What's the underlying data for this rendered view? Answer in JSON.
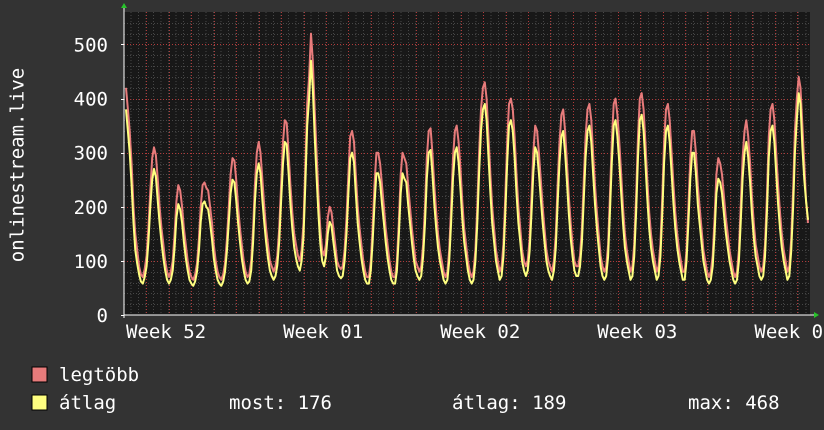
{
  "chart_data": {
    "type": "line",
    "ylabel": "onlinestream.live",
    "ylim": [
      0,
      560
    ],
    "yticks": [
      0,
      100,
      200,
      300,
      400,
      500
    ],
    "xlim": [
      0,
      1
    ],
    "xticks": [
      {
        "label": "Week 52",
        "x": 0.0
      },
      {
        "label": "Week 01",
        "x": 0.229
      },
      {
        "label": "Week 02",
        "x": 0.458
      },
      {
        "label": "Week 03",
        "x": 0.687
      },
      {
        "label": "Week 0",
        "x": 0.916
      }
    ],
    "grid": true,
    "colors": {
      "background": "#333333",
      "plot_background": "#181818",
      "grid_minor": "#474747",
      "grid_major": "#b03a3a",
      "axis_arrow": "#27c22a",
      "series_max": "#e77b7b",
      "series_avg": "#ffff80"
    },
    "series": [
      {
        "name": "legtöbb",
        "color": "#e77b7b",
        "values": [
          420,
          380,
          340,
          280,
          200,
          150,
          120,
          90,
          75,
          70,
          85,
          110,
          160,
          230,
          290,
          310,
          295,
          250,
          200,
          160,
          130,
          100,
          80,
          70,
          80,
          100,
          150,
          210,
          240,
          230,
          200,
          160,
          130,
          100,
          80,
          70,
          65,
          75,
          95,
          140,
          200,
          240,
          245,
          235,
          230,
          200,
          170,
          130,
          100,
          80,
          70,
          65,
          75,
          95,
          140,
          200,
          260,
          290,
          285,
          250,
          200,
          160,
          130,
          100,
          80,
          70,
          75,
          100,
          160,
          240,
          300,
          320,
          300,
          250,
          200,
          160,
          130,
          100,
          90,
          80,
          90,
          110,
          160,
          240,
          320,
          360,
          355,
          300,
          240,
          190,
          150,
          130,
          110,
          100,
          120,
          170,
          280,
          390,
          440,
          520,
          470,
          380,
          300,
          220,
          160,
          120,
          110,
          130,
          180,
          200,
          190,
          160,
          130,
          100,
          90,
          85,
          90,
          120,
          180,
          260,
          330,
          340,
          320,
          260,
          200,
          160,
          130,
          100,
          80,
          70,
          70,
          100,
          160,
          240,
          300,
          300,
          280,
          240,
          200,
          160,
          130,
          100,
          80,
          70,
          70,
          100,
          170,
          260,
          300,
          290,
          280,
          240,
          200,
          160,
          130,
          100,
          90,
          80,
          90,
          130,
          200,
          290,
          340,
          345,
          300,
          240,
          190,
          150,
          120,
          100,
          80,
          70,
          80,
          120,
          200,
          290,
          340,
          350,
          320,
          270,
          210,
          160,
          130,
          100,
          80,
          70,
          80,
          120,
          200,
          300,
          380,
          420,
          430,
          400,
          330,
          260,
          200,
          160,
          120,
          100,
          80,
          90,
          130,
          220,
          320,
          390,
          400,
          380,
          330,
          260,
          200,
          160,
          120,
          100,
          90,
          100,
          140,
          220,
          300,
          350,
          340,
          300,
          250,
          200,
          160,
          120,
          100,
          90,
          80,
          100,
          150,
          240,
          320,
          370,
          380,
          340,
          280,
          220,
          170,
          130,
          100,
          90,
          90,
          110,
          160,
          250,
          330,
          380,
          390,
          360,
          300,
          240,
          190,
          150,
          110,
          90,
          80,
          90,
          130,
          220,
          320,
          390,
          400,
          370,
          320,
          260,
          200,
          150,
          120,
          100,
          80,
          90,
          130,
          220,
          330,
          400,
          410,
          380,
          320,
          250,
          190,
          150,
          120,
          100,
          80,
          90,
          130,
          220,
          320,
          380,
          390,
          360,
          300,
          240,
          190,
          150,
          120,
          100,
          80,
          80,
          120,
          200,
          290,
          340,
          340,
          300,
          240,
          200,
          160,
          120,
          100,
          80,
          70,
          80,
          110,
          180,
          260,
          290,
          280,
          260,
          220,
          180,
          150,
          120,
          100,
          80,
          70,
          80,
          120,
          200,
          290,
          340,
          360,
          330,
          280,
          220,
          170,
          130,
          110,
          90,
          80,
          90,
          130,
          220,
          330,
          380,
          390,
          360,
          300,
          240,
          190,
          150,
          120,
          100,
          80,
          90,
          140,
          230,
          340,
          400,
          440,
          420,
          350,
          280,
          210,
          170
        ]
      },
      {
        "name": "átlag",
        "color": "#ffff80",
        "values": [
          380,
          340,
          300,
          240,
          170,
          120,
          95,
          75,
          62,
          58,
          70,
          90,
          135,
          200,
          250,
          270,
          255,
          210,
          170,
          135,
          105,
          82,
          65,
          58,
          65,
          82,
          125,
          180,
          205,
          195,
          170,
          135,
          105,
          82,
          65,
          58,
          54,
          62,
          80,
          118,
          172,
          205,
          210,
          200,
          195,
          170,
          140,
          105,
          82,
          65,
          58,
          54,
          62,
          80,
          118,
          172,
          225,
          250,
          245,
          212,
          170,
          135,
          105,
          82,
          65,
          58,
          62,
          82,
          135,
          210,
          262,
          280,
          262,
          212,
          170,
          135,
          105,
          82,
          72,
          65,
          72,
          92,
          135,
          210,
          280,
          320,
          315,
          262,
          205,
          160,
          125,
          105,
          90,
          82,
          100,
          145,
          245,
          350,
          400,
          470,
          420,
          330,
          255,
          185,
          132,
          100,
          90,
          108,
          150,
          172,
          165,
          135,
          108,
          82,
          72,
          68,
          72,
          100,
          150,
          225,
          290,
          300,
          282,
          225,
          170,
          135,
          105,
          82,
          65,
          58,
          58,
          82,
          135,
          205,
          262,
          262,
          245,
          205,
          170,
          135,
          105,
          82,
          65,
          58,
          58,
          82,
          145,
          225,
          262,
          252,
          245,
          205,
          170,
          135,
          105,
          82,
          72,
          65,
          72,
          108,
          170,
          252,
          300,
          305,
          262,
          205,
          160,
          125,
          100,
          82,
          65,
          58,
          65,
          100,
          170,
          252,
          300,
          310,
          282,
          232,
          178,
          135,
          108,
          82,
          65,
          58,
          65,
          100,
          170,
          262,
          340,
          380,
          390,
          360,
          292,
          225,
          170,
          135,
          100,
          82,
          65,
          72,
          108,
          188,
          282,
          350,
          360,
          340,
          292,
          225,
          170,
          135,
          100,
          82,
          72,
          82,
          118,
          188,
          262,
          310,
          300,
          262,
          215,
          170,
          135,
          100,
          82,
          72,
          65,
          82,
          125,
          205,
          282,
          330,
          340,
          300,
          245,
          188,
          142,
          108,
          82,
          72,
          72,
          90,
          135,
          215,
          292,
          340,
          350,
          320,
          262,
          205,
          160,
          125,
          90,
          72,
          65,
          72,
          108,
          188,
          282,
          350,
          360,
          330,
          282,
          225,
          170,
          125,
          100,
          82,
          65,
          72,
          108,
          188,
          292,
          360,
          370,
          340,
          282,
          215,
          160,
          125,
          100,
          82,
          65,
          72,
          108,
          188,
          282,
          340,
          350,
          320,
          262,
          205,
          160,
          125,
          100,
          82,
          65,
          65,
          100,
          170,
          252,
          300,
          300,
          262,
          205,
          170,
          135,
          100,
          82,
          65,
          58,
          65,
          90,
          152,
          225,
          252,
          245,
          225,
          188,
          152,
          125,
          100,
          82,
          65,
          58,
          65,
          100,
          170,
          252,
          300,
          320,
          292,
          245,
          188,
          142,
          108,
          90,
          72,
          65,
          72,
          108,
          188,
          292,
          340,
          350,
          320,
          262,
          205,
          160,
          125,
          100,
          82,
          65,
          72,
          118,
          198,
          300,
          360,
          410,
          390,
          310,
          250,
          210,
          176
        ]
      }
    ],
    "legend": {
      "placement": "bottom-left",
      "items": [
        {
          "label": "legtöbb",
          "color": "#e77b7b"
        },
        {
          "label": "átlag",
          "color": "#ffff80"
        }
      ]
    },
    "stats": {
      "most": "most: 176",
      "atlag": "átlag: 189",
      "max": "max: 468"
    }
  }
}
